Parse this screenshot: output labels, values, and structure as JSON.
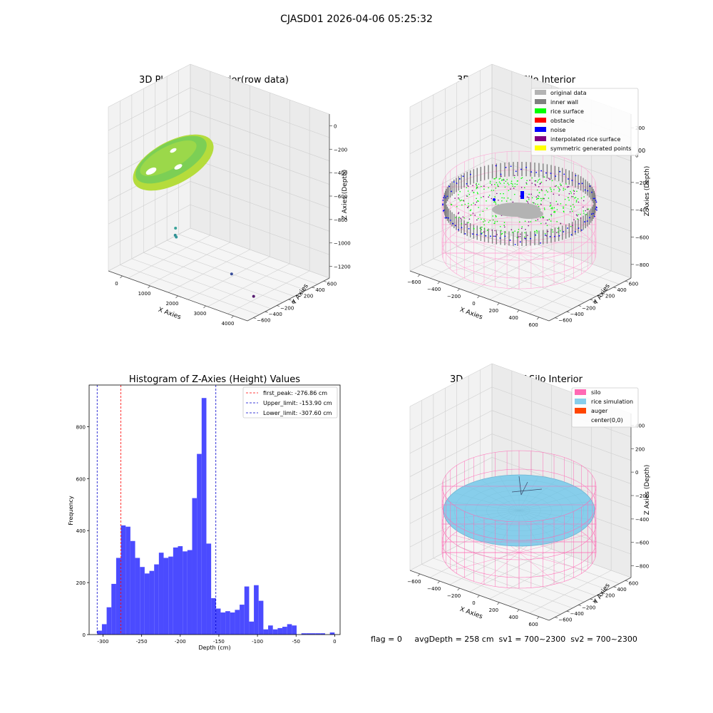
{
  "figure": {
    "title": "CJASD01 2026-04-06 05:25:32",
    "status_line": "flag = 0     avgDepth = 258 cm  sv1 = 700~2300  sv2 = 700~2300"
  },
  "colors": {
    "grid": "#cfcfcf",
    "pane": "#f2f2f2",
    "hist_bar": "#4b4bff",
    "first_peak_line": "#ff0000",
    "limit_line": "#0000cc",
    "silo": "#ff69b4",
    "rice": "#87ceeb",
    "auger": "#ff4500",
    "inner_wall": "#808080",
    "original": "#b3b3b3",
    "rice_surface": "#00ff00",
    "obstacle": "#ff0000",
    "noise": "#0000ff",
    "interpolated": "#800080",
    "symmetric": "#ffff00"
  },
  "chart_data": [
    {
      "id": "raw",
      "type": "scatter",
      "title": "3D Plot of Silo Interior(row data)",
      "xlabel": "X Axies",
      "ylabel": "Y Axies",
      "zlabel": "Z Axies (Depth)",
      "x_ticks": [
        "0",
        "1000",
        "2000",
        "3000",
        "4000"
      ],
      "y_ticks": [
        "−600",
        "−400",
        "−200",
        "0",
        "200",
        "400",
        "600"
      ],
      "z_ticks": [
        "0",
        "−200",
        "−400",
        "−600",
        "−800",
        "−1000",
        "−1200"
      ],
      "outlier_points": [
        {
          "x": 1100,
          "y": 0,
          "z": -950
        },
        {
          "x": 1150,
          "y": -50,
          "z": -1000
        },
        {
          "x": 1200,
          "y": -60,
          "z": -1010
        },
        {
          "x": 3200,
          "y": -100,
          "z": -1150
        },
        {
          "x": 4100,
          "y": -200,
          "z": -1250
        }
      ]
    },
    {
      "id": "classify",
      "type": "scatter",
      "title": "3D classify of Silo Interior",
      "xlabel": "X Axies",
      "ylabel": "Y Axies",
      "zlabel": "Z Axies (Depth)",
      "x_ticks": [
        "−600",
        "−400",
        "−200",
        "0",
        "200",
        "400",
        "600"
      ],
      "y_ticks": [
        "−600",
        "−400",
        "−200",
        "0",
        "200",
        "400",
        "600"
      ],
      "z_ticks": [
        "200",
        "0",
        "−200",
        "−400",
        "−600",
        "−800"
      ],
      "z_top_partial": "00",
      "legend": [
        {
          "label": "original data",
          "color": "#b3b3b3"
        },
        {
          "label": "inner wall",
          "color": "#808080"
        },
        {
          "label": "rice surface",
          "color": "#00ff00"
        },
        {
          "label": "obstacle",
          "color": "#ff0000"
        },
        {
          "label": "noise",
          "color": "#0000ff"
        },
        {
          "label": "interpolated rice surface",
          "color": "#800080"
        },
        {
          "label": "symmetric generated points",
          "color": "#ffff00"
        }
      ]
    },
    {
      "id": "hist",
      "type": "bar",
      "title": "Histogram of Z-Axies (Height) Values",
      "xlabel": "Depth (cm)",
      "ylabel": "Frequency",
      "xlim": [
        -318,
        7
      ],
      "ylim": [
        0,
        960
      ],
      "x_ticks": [
        -300,
        -250,
        -200,
        -150,
        -100,
        -50,
        0
      ],
      "y_ticks": [
        0,
        200,
        400,
        600,
        800
      ],
      "bin_width": 6.15,
      "bin_start": -307.6,
      "values": [
        15,
        40,
        105,
        195,
        295,
        420,
        415,
        360,
        295,
        260,
        235,
        245,
        270,
        315,
        295,
        300,
        335,
        340,
        320,
        325,
        525,
        695,
        910,
        350,
        140,
        100,
        85,
        90,
        85,
        95,
        115,
        185,
        50,
        190,
        130,
        20,
        35,
        20,
        25,
        30,
        40,
        35,
        0,
        5,
        5,
        5,
        5,
        5,
        0,
        8
      ],
      "vlines": [
        {
          "label": "first_peak: -276.86 cm",
          "x": -276.86,
          "color": "#ff0000"
        },
        {
          "label": "Upper_limit: -153.90 cm",
          "x": -153.9,
          "color": "#0000cc"
        },
        {
          "label": "Lower_limit: -307.60 cm",
          "x": -307.6,
          "color": "#0000cc"
        }
      ]
    },
    {
      "id": "sim",
      "type": "surface",
      "title": "3D simulation of Silo Interior",
      "xlabel": "X Axies",
      "ylabel": "Y Axies",
      "zlabel": "Z Axies (Depth)",
      "x_ticks": [
        "−600",
        "−400",
        "−200",
        "0",
        "200",
        "400",
        "600"
      ],
      "y_ticks": [
        "−600",
        "−400",
        "−200",
        "0",
        "200",
        "400",
        "600"
      ],
      "z_ticks": [
        "400",
        "200",
        "0",
        "−200",
        "−400",
        "−600",
        "−800"
      ],
      "legend": [
        {
          "label": "silo",
          "color": "#ff69b4"
        },
        {
          "label": "rice simulation",
          "color": "#87ceeb"
        },
        {
          "label": "auger",
          "color": "#ff4500"
        },
        {
          "label": "center(0,0)",
          "color": ""
        }
      ]
    }
  ]
}
